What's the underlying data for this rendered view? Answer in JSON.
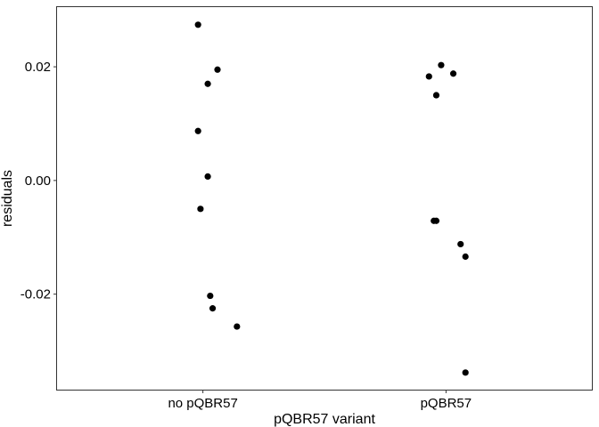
{
  "chart_data": {
    "type": "scatter",
    "title": "",
    "xlabel": "pQBR57 variant",
    "ylabel": "residuals",
    "categories": [
      "no pQBR57",
      "pQBR57"
    ],
    "ylim": [
      -0.0368,
      0.0305
    ],
    "yticks": [
      -0.02,
      0.0,
      0.02
    ],
    "ytick_labels": [
      "-0.02",
      "0.00",
      "0.02"
    ],
    "grid": false,
    "legend": "none",
    "point_color": "#000000",
    "points": [
      {
        "category": "no pQBR57",
        "jitter": -0.02,
        "y": 0.0274
      },
      {
        "category": "no pQBR57",
        "jitter": 0.06,
        "y": 0.0195
      },
      {
        "category": "no pQBR57",
        "jitter": 0.02,
        "y": 0.017
      },
      {
        "category": "no pQBR57",
        "jitter": -0.02,
        "y": 0.0087
      },
      {
        "category": "no pQBR57",
        "jitter": 0.02,
        "y": 0.0007
      },
      {
        "category": "no pQBR57",
        "jitter": -0.01,
        "y": -0.005
      },
      {
        "category": "no pQBR57",
        "jitter": 0.03,
        "y": -0.0203
      },
      {
        "category": "no pQBR57",
        "jitter": 0.04,
        "y": -0.0225
      },
      {
        "category": "no pQBR57",
        "jitter": 0.14,
        "y": -0.0257
      },
      {
        "category": "pQBR57",
        "jitter": -0.07,
        "y": 0.0183
      },
      {
        "category": "pQBR57",
        "jitter": -0.02,
        "y": 0.0203
      },
      {
        "category": "pQBR57",
        "jitter": 0.03,
        "y": 0.0188
      },
      {
        "category": "pQBR57",
        "jitter": -0.04,
        "y": 0.015
      },
      {
        "category": "pQBR57",
        "jitter": -0.05,
        "y": -0.0071
      },
      {
        "category": "pQBR57",
        "jitter": -0.04,
        "y": -0.0071
      },
      {
        "category": "pQBR57",
        "jitter": 0.06,
        "y": -0.0112
      },
      {
        "category": "pQBR57",
        "jitter": 0.08,
        "y": -0.0134
      },
      {
        "category": "pQBR57",
        "jitter": 0.08,
        "y": -0.0338
      }
    ]
  }
}
